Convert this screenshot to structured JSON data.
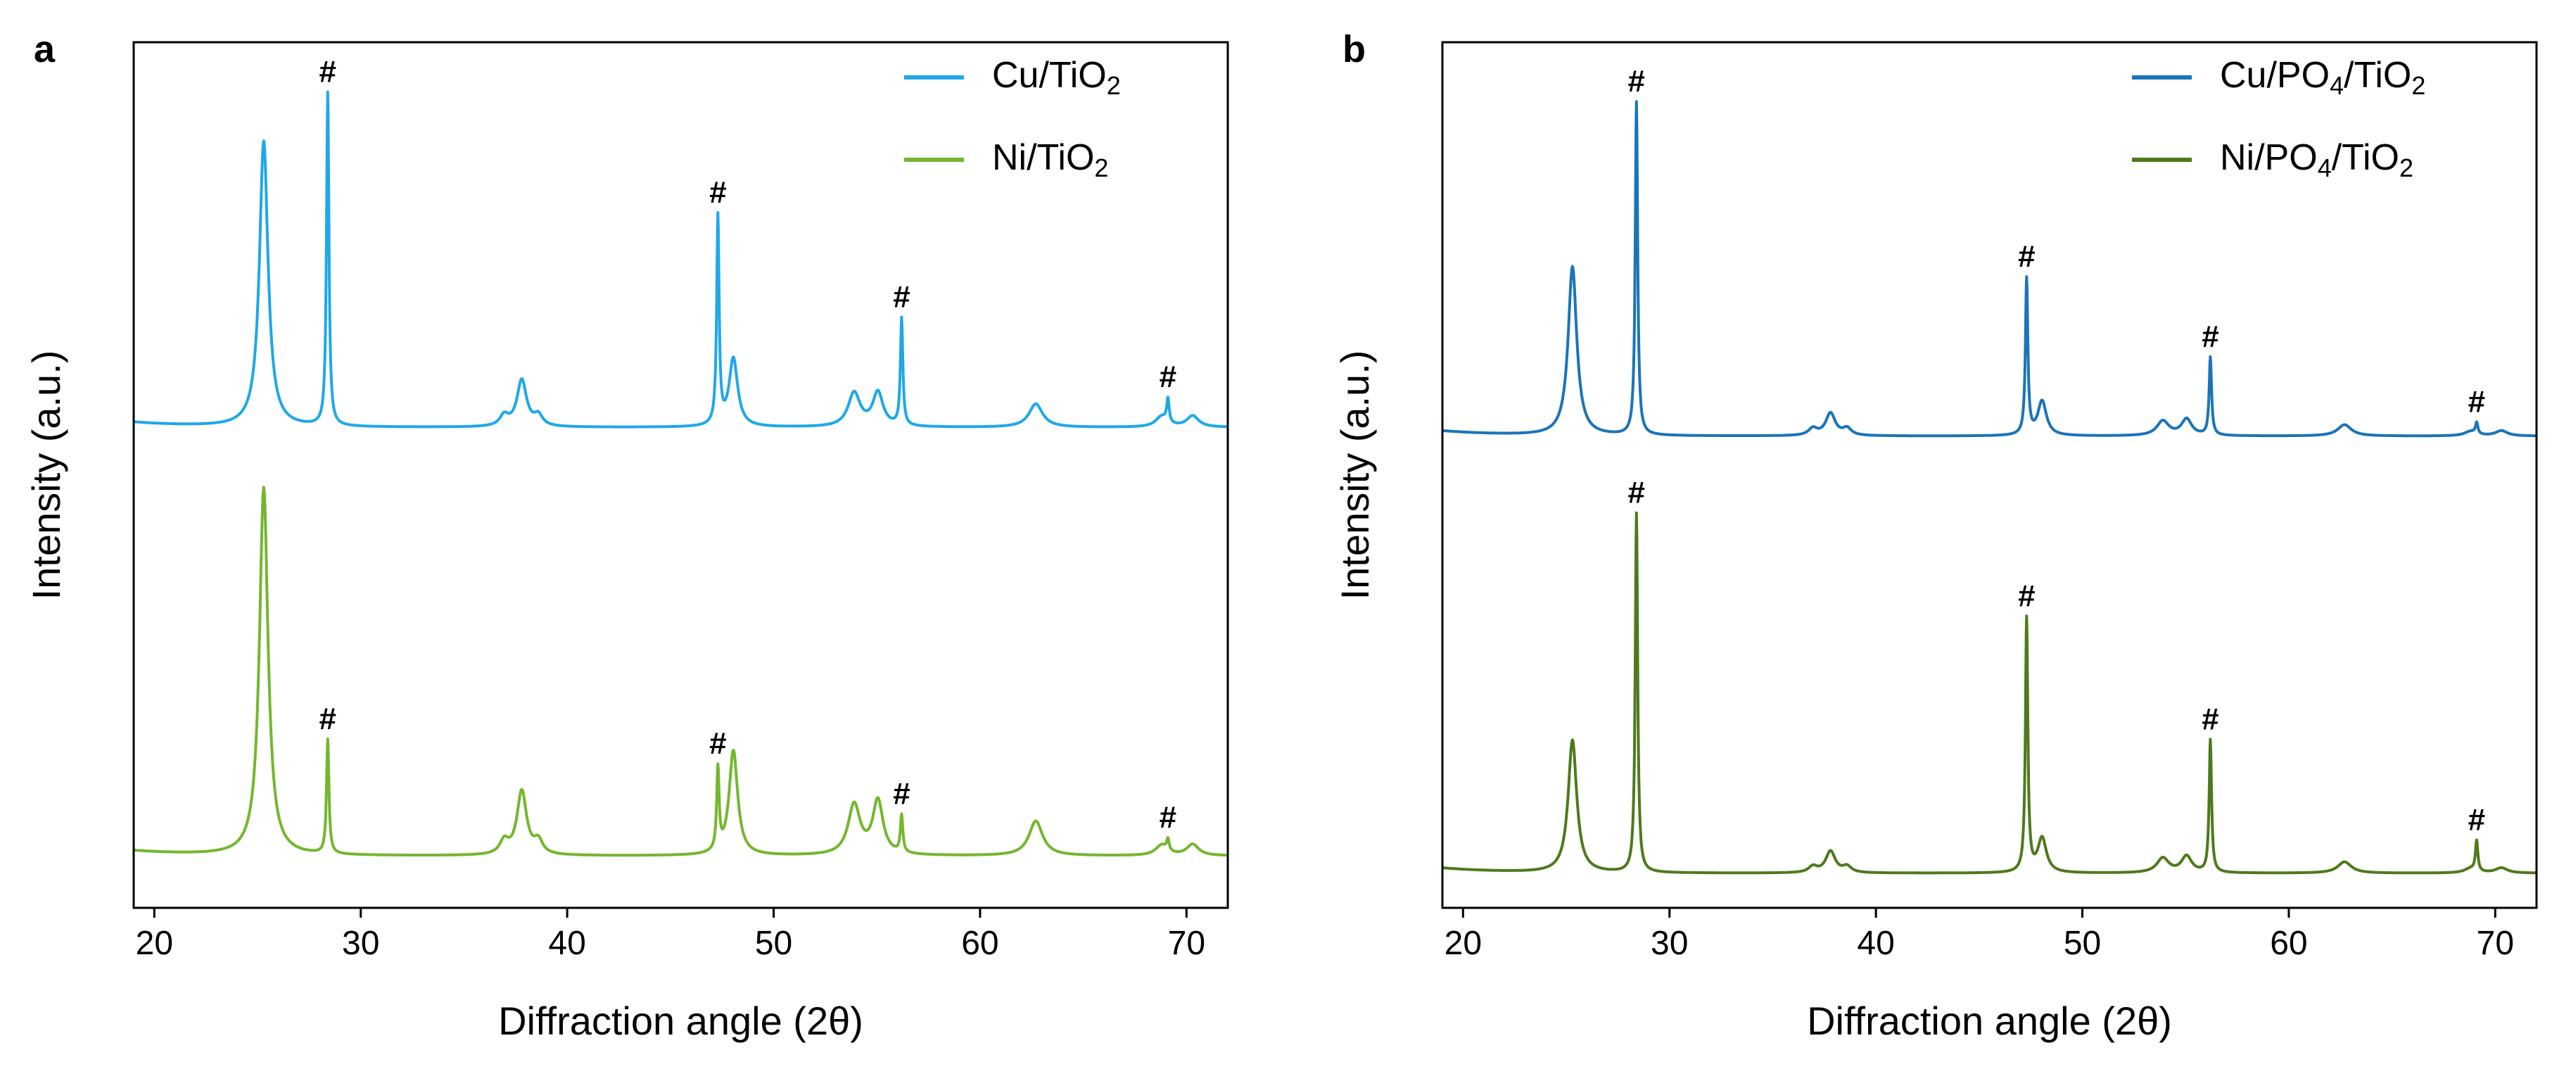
{
  "chart_data": [
    {
      "type": "line",
      "panel_label": "a",
      "xlabel": "Diffraction angle (2θ)",
      "ylabel": "Intensity (a.u.)",
      "xlim": [
        19,
        72
      ],
      "xticks": [
        20,
        30,
        40,
        50,
        60,
        70
      ],
      "ylim": [
        0,
        1
      ],
      "yticks_shown": false,
      "legend_position": "top-right",
      "series": [
        {
          "name": "Cu/TiO",
          "subscript": "2",
          "color": "#1FA8E8",
          "baseline": 0.555,
          "peaks": [
            {
              "x": 25.3,
              "h": 0.33,
              "w": 0.25,
              "hash": false
            },
            {
              "x": 28.4,
              "h": 0.385,
              "w": 0.07,
              "hash": true
            },
            {
              "x": 36.95,
              "h": 0.012,
              "w": 0.25,
              "hash": false
            },
            {
              "x": 37.8,
              "h": 0.054,
              "w": 0.28,
              "hash": false
            },
            {
              "x": 38.6,
              "h": 0.012,
              "w": 0.25,
              "hash": false
            },
            {
              "x": 47.3,
              "h": 0.24,
              "w": 0.07,
              "hash": true
            },
            {
              "x": 48.05,
              "h": 0.079,
              "w": 0.25,
              "hash": false
            },
            {
              "x": 53.9,
              "h": 0.039,
              "w": 0.35,
              "hash": false
            },
            {
              "x": 55.05,
              "h": 0.039,
              "w": 0.3,
              "hash": false
            },
            {
              "x": 56.2,
              "h": 0.124,
              "w": 0.07,
              "hash": true
            },
            {
              "x": 62.7,
              "h": 0.027,
              "w": 0.4,
              "hash": false
            },
            {
              "x": 68.8,
              "h": 0.012,
              "w": 0.35,
              "hash": false
            },
            {
              "x": 69.1,
              "h": 0.027,
              "w": 0.07,
              "hash": true
            },
            {
              "x": 70.3,
              "h": 0.013,
              "w": 0.35,
              "hash": false
            }
          ]
        },
        {
          "name": "Ni/TiO",
          "subscript": "2",
          "color": "#74B72E",
          "baseline": 0.06,
          "peaks": [
            {
              "x": 25.3,
              "h": 0.425,
              "w": 0.25,
              "hash": false
            },
            {
              "x": 28.4,
              "h": 0.132,
              "w": 0.07,
              "hash": true
            },
            {
              "x": 36.95,
              "h": 0.015,
              "w": 0.25,
              "hash": false
            },
            {
              "x": 37.8,
              "h": 0.074,
              "w": 0.28,
              "hash": false
            },
            {
              "x": 38.6,
              "h": 0.015,
              "w": 0.25,
              "hash": false
            },
            {
              "x": 47.3,
              "h": 0.094,
              "w": 0.07,
              "hash": true
            },
            {
              "x": 48.05,
              "h": 0.121,
              "w": 0.25,
              "hash": false
            },
            {
              "x": 53.9,
              "h": 0.058,
              "w": 0.35,
              "hash": false
            },
            {
              "x": 55.05,
              "h": 0.062,
              "w": 0.3,
              "hash": false
            },
            {
              "x": 56.2,
              "h": 0.043,
              "w": 0.07,
              "hash": true
            },
            {
              "x": 62.7,
              "h": 0.04,
              "w": 0.4,
              "hash": false
            },
            {
              "x": 68.8,
              "h": 0.012,
              "w": 0.35,
              "hash": false
            },
            {
              "x": 69.1,
              "h": 0.013,
              "w": 0.07,
              "hash": true
            },
            {
              "x": 70.3,
              "h": 0.013,
              "w": 0.35,
              "hash": false
            }
          ]
        }
      ],
      "annotations": [
        {
          "text": "#",
          "x": 28.4,
          "series": 0
        },
        {
          "text": "#",
          "x": 47.3,
          "series": 0
        },
        {
          "text": "#",
          "x": 56.2,
          "series": 0
        },
        {
          "text": "#",
          "x": 69.1,
          "series": 0
        },
        {
          "text": "#",
          "x": 28.4,
          "series": 1
        },
        {
          "text": "#",
          "x": 47.3,
          "series": 1
        },
        {
          "text": "#",
          "x": 56.2,
          "series": 1
        },
        {
          "text": "#",
          "x": 69.1,
          "series": 1
        }
      ]
    },
    {
      "type": "line",
      "panel_label": "b",
      "xlabel": "Diffraction angle (2θ)",
      "ylabel": "Intensity (a.u.)",
      "xlim": [
        19,
        72
      ],
      "xticks": [
        20,
        30,
        40,
        50,
        60,
        70
      ],
      "ylim": [
        0,
        1
      ],
      "yticks_shown": false,
      "legend_position": "top-right",
      "series": [
        {
          "name": "Cu/PO",
          "sub1": "4",
          "mid": "/TiO",
          "sub2": "2",
          "color": "#1B74B8",
          "baseline": 0.545,
          "peaks": [
            {
              "x": 25.3,
              "h": 0.195,
              "w": 0.25,
              "hash": false
            },
            {
              "x": 28.4,
              "h": 0.385,
              "w": 0.07,
              "hash": true
            },
            {
              "x": 36.95,
              "h": 0.008,
              "w": 0.25,
              "hash": false
            },
            {
              "x": 37.8,
              "h": 0.026,
              "w": 0.28,
              "hash": false
            },
            {
              "x": 38.6,
              "h": 0.008,
              "w": 0.25,
              "hash": false
            },
            {
              "x": 47.3,
              "h": 0.18,
              "w": 0.07,
              "hash": true
            },
            {
              "x": 48.05,
              "h": 0.04,
              "w": 0.25,
              "hash": false
            },
            {
              "x": 53.9,
              "h": 0.017,
              "w": 0.35,
              "hash": false
            },
            {
              "x": 55.05,
              "h": 0.019,
              "w": 0.3,
              "hash": false
            },
            {
              "x": 56.2,
              "h": 0.09,
              "w": 0.07,
              "hash": true
            },
            {
              "x": 62.7,
              "h": 0.013,
              "w": 0.4,
              "hash": false
            },
            {
              "x": 68.8,
              "h": 0.005,
              "w": 0.35,
              "hash": false
            },
            {
              "x": 69.1,
              "h": 0.013,
              "w": 0.07,
              "hash": true
            },
            {
              "x": 70.3,
              "h": 0.006,
              "w": 0.35,
              "hash": false
            }
          ]
        },
        {
          "name": "Ni/PO",
          "sub1": "4",
          "mid": "/TiO",
          "sub2": "2",
          "color": "#4E7A1B",
          "baseline": 0.04,
          "peaks": [
            {
              "x": 25.3,
              "h": 0.153,
              "w": 0.25,
              "hash": false
            },
            {
              "x": 28.4,
              "h": 0.415,
              "w": 0.07,
              "hash": true
            },
            {
              "x": 36.95,
              "h": 0.007,
              "w": 0.25,
              "hash": false
            },
            {
              "x": 37.8,
              "h": 0.025,
              "w": 0.28,
              "hash": false
            },
            {
              "x": 38.6,
              "h": 0.007,
              "w": 0.25,
              "hash": false
            },
            {
              "x": 47.3,
              "h": 0.293,
              "w": 0.07,
              "hash": true
            },
            {
              "x": 48.05,
              "h": 0.04,
              "w": 0.25,
              "hash": false
            },
            {
              "x": 53.9,
              "h": 0.017,
              "w": 0.35,
              "hash": false
            },
            {
              "x": 55.05,
              "h": 0.019,
              "w": 0.3,
              "hash": false
            },
            {
              "x": 56.2,
              "h": 0.153,
              "w": 0.07,
              "hash": true
            },
            {
              "x": 62.7,
              "h": 0.013,
              "w": 0.4,
              "hash": false
            },
            {
              "x": 68.8,
              "h": 0.005,
              "w": 0.35,
              "hash": false
            },
            {
              "x": 69.1,
              "h": 0.035,
              "w": 0.07,
              "hash": true
            },
            {
              "x": 70.3,
              "h": 0.006,
              "w": 0.35,
              "hash": false
            }
          ]
        }
      ],
      "annotations": [
        {
          "text": "#",
          "x": 28.4,
          "series": 0
        },
        {
          "text": "#",
          "x": 47.3,
          "series": 0
        },
        {
          "text": "#",
          "x": 56.2,
          "series": 0
        },
        {
          "text": "#",
          "x": 69.1,
          "series": 0
        },
        {
          "text": "#",
          "x": 28.4,
          "series": 1
        },
        {
          "text": "#",
          "x": 47.3,
          "series": 1
        },
        {
          "text": "#",
          "x": 56.2,
          "series": 1
        },
        {
          "text": "#",
          "x": 69.1,
          "series": 1
        }
      ]
    }
  ]
}
